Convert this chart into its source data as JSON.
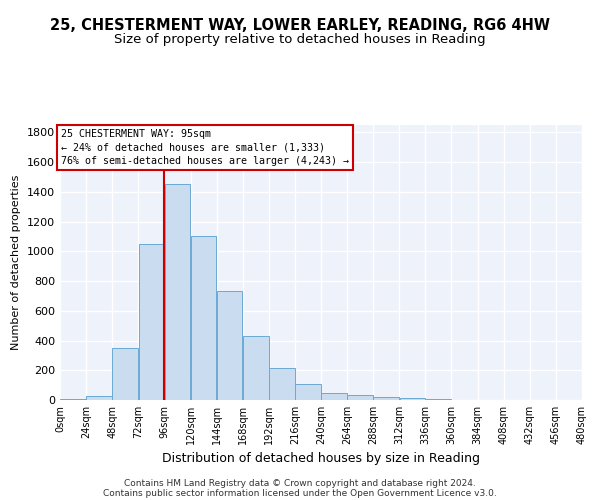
{
  "title": "25, CHESTERMENT WAY, LOWER EARLEY, READING, RG6 4HW",
  "subtitle": "Size of property relative to detached houses in Reading",
  "xlabel": "Distribution of detached houses by size in Reading",
  "ylabel": "Number of detached properties",
  "bin_edges": [
    0,
    24,
    48,
    72,
    96,
    120,
    144,
    168,
    192,
    216,
    240,
    264,
    288,
    312,
    336,
    360,
    384,
    408,
    432,
    456,
    480
  ],
  "bar_heights": [
    5,
    30,
    350,
    1050,
    1450,
    1100,
    730,
    430,
    215,
    105,
    50,
    35,
    20,
    15,
    5,
    3,
    2,
    1,
    0,
    0
  ],
  "bar_color": "#c9dcf0",
  "bar_edge_color": "#6aaad4",
  "property_line_x": 96,
  "property_line_color": "#cc0000",
  "ylim": [
    0,
    1850
  ],
  "yticks": [
    0,
    200,
    400,
    600,
    800,
    1000,
    1200,
    1400,
    1600,
    1800
  ],
  "annotation_line1": "25 CHESTERMENT WAY: 95sqm",
  "annotation_line2": "← 24% of detached houses are smaller (1,333)",
  "annotation_line3": "76% of semi-detached houses are larger (4,243) →",
  "annotation_box_color": "#cc0000",
  "footer_line1": "Contains HM Land Registry data © Crown copyright and database right 2024.",
  "footer_line2": "Contains public sector information licensed under the Open Government Licence v3.0.",
  "background_color": "#eef2fa",
  "grid_color": "#ffffff",
  "title_fontsize": 10.5,
  "subtitle_fontsize": 9.5
}
